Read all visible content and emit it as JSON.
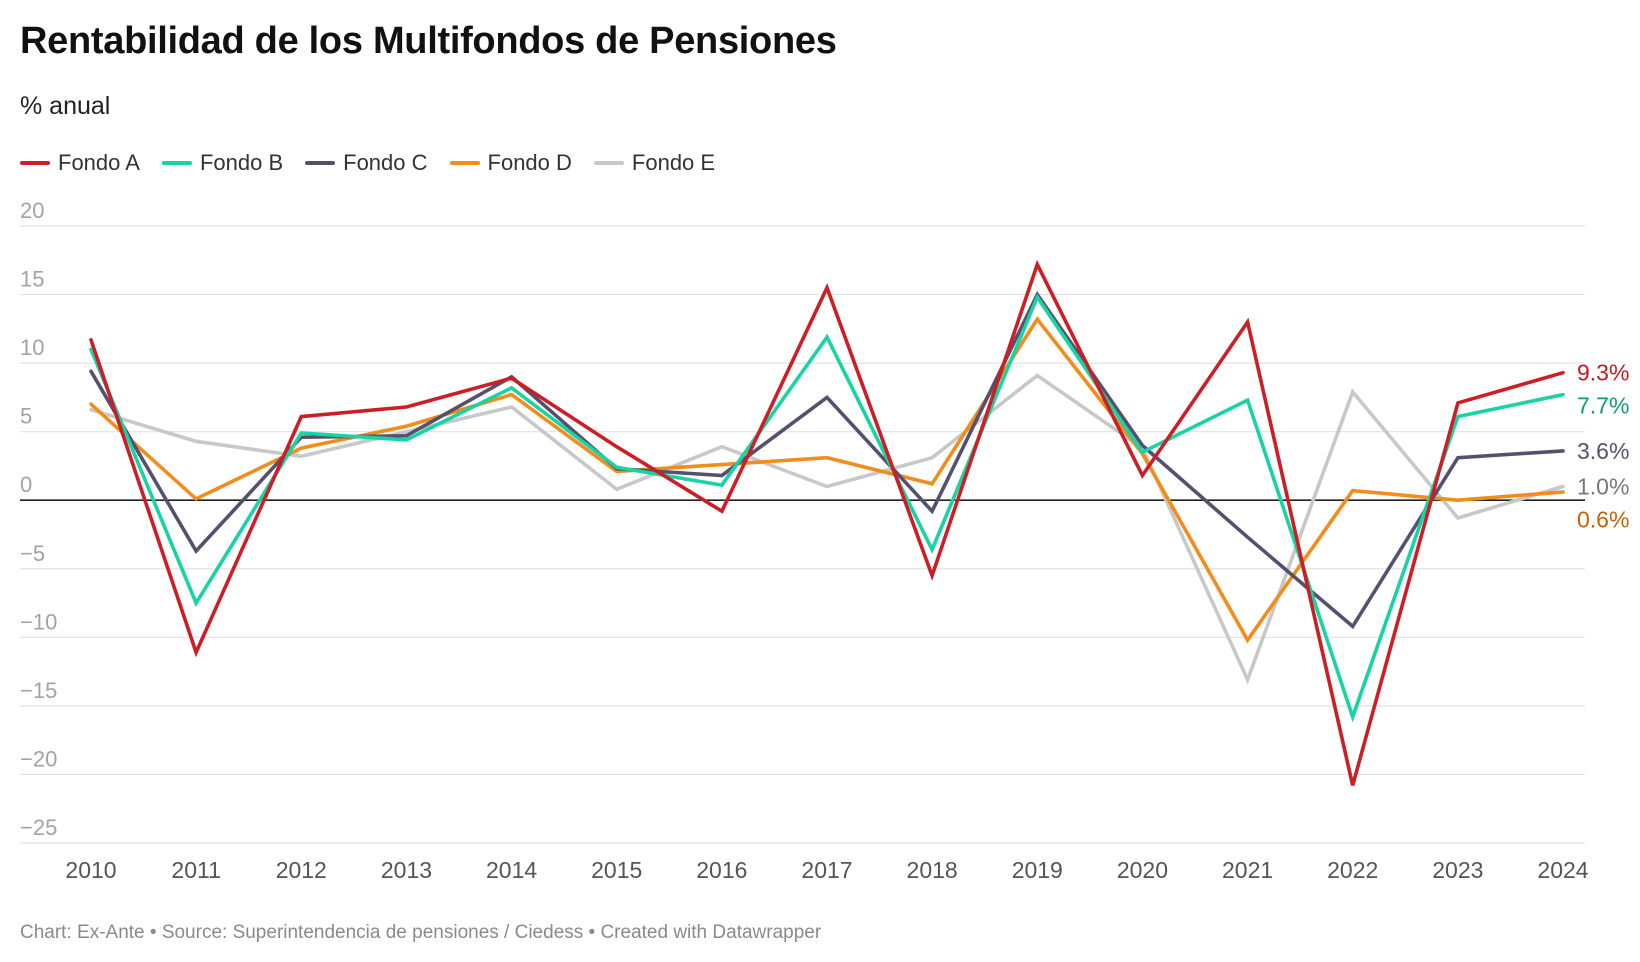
{
  "title": "Rentabilidad de los Multifondos de Pensiones",
  "subtitle": "% anual",
  "footer": "Chart: Ex-Ante • Source: Superintendencia de pensiones / Ciedess • Created with Datawrapper",
  "chart_data": {
    "type": "line",
    "title": "Rentabilidad de los Multifondos de Pensiones",
    "subtitle": "% anual",
    "xlabel": "",
    "ylabel": "",
    "x": [
      "2010",
      "2011",
      "2012",
      "2013",
      "2014",
      "2015",
      "2016",
      "2017",
      "2018",
      "2019",
      "2020",
      "2021",
      "2022",
      "2023",
      "2024"
    ],
    "ylim": [
      -25,
      20
    ],
    "yticks": [
      20,
      15,
      10,
      5,
      0,
      -5,
      -10,
      -15,
      -20,
      -25
    ],
    "ytick_labels": [
      "20",
      "15",
      "10",
      "5",
      "0",
      "−5",
      "−10",
      "−15",
      "−20",
      "−25"
    ],
    "grid": true,
    "legend_position": "top-left",
    "series": [
      {
        "name": "Fondo E",
        "color": "#c8c8c8",
        "end_label": "1.0%",
        "label_color": "#777777",
        "values": [
          6.6,
          4.3,
          3.2,
          5.0,
          6.8,
          0.8,
          3.9,
          1.0,
          3.1,
          9.1,
          3.8,
          -13.1,
          7.9,
          -1.3,
          1.0
        ]
      },
      {
        "name": "Fondo D",
        "color": "#f28c1a",
        "end_label": "0.6%",
        "label_color": "#c86200",
        "values": [
          7.0,
          0.1,
          3.8,
          5.4,
          7.7,
          2.1,
          2.6,
          3.1,
          1.2,
          13.2,
          3.4,
          -10.2,
          0.7,
          0.0,
          0.6
        ]
      },
      {
        "name": "Fondo C",
        "color": "#55506e",
        "end_label": "3.6%",
        "label_color": "#55506e",
        "values": [
          9.4,
          -3.7,
          4.6,
          4.7,
          9.0,
          2.3,
          1.8,
          7.5,
          -0.8,
          15.0,
          4.0,
          -2.7,
          -9.2,
          3.1,
          3.6
        ]
      },
      {
        "name": "Fondo B",
        "color": "#18d4a4",
        "end_label": "7.7%",
        "label_color": "#0f9a74",
        "values": [
          11.0,
          -7.5,
          4.9,
          4.4,
          8.2,
          2.4,
          1.1,
          11.9,
          -3.6,
          14.8,
          3.5,
          7.3,
          -15.8,
          6.1,
          7.7
        ]
      },
      {
        "name": "Fondo A",
        "color": "#cd1e25",
        "end_label": "9.3%",
        "label_color": "#c41a1f",
        "values": [
          11.7,
          -11.1,
          6.1,
          6.8,
          8.9,
          3.9,
          -0.8,
          15.5,
          -5.5,
          17.2,
          1.8,
          13.0,
          -20.8,
          7.1,
          9.3
        ]
      }
    ]
  },
  "legend": [
    {
      "name": "Fondo A",
      "color": "#cd1e25"
    },
    {
      "name": "Fondo B",
      "color": "#18d4a4"
    },
    {
      "name": "Fondo C",
      "color": "#55506e"
    },
    {
      "name": "Fondo D",
      "color": "#f28c1a"
    },
    {
      "name": "Fondo E",
      "color": "#c8c8c8"
    }
  ]
}
